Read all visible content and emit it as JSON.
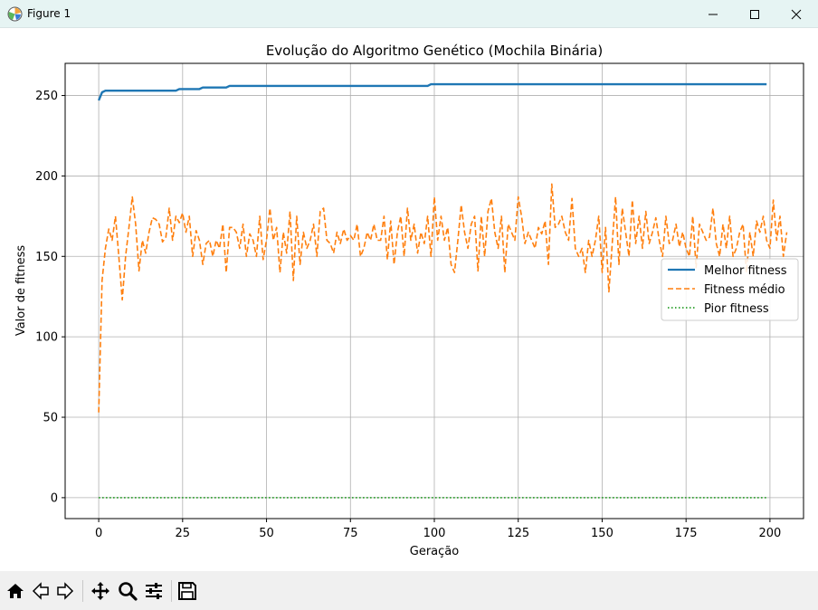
{
  "window": {
    "title": "Figure 1"
  },
  "toolbar": {
    "buttons": [
      {
        "name": "home-icon"
      },
      {
        "name": "back-arrow-icon"
      },
      {
        "name": "forward-arrow-icon"
      },
      {
        "name": "pan-icon"
      },
      {
        "name": "zoom-icon"
      },
      {
        "name": "configure-subplots-icon"
      },
      {
        "name": "save-icon"
      }
    ]
  },
  "colors": {
    "best": "#1f77b4",
    "mean": "#ff7f0e",
    "worst": "#2ca02c",
    "grid": "#b0b0b0"
  },
  "chart_data": {
    "type": "line",
    "title": "Evolução do Algoritmo Genético (Mochila Binária)",
    "xlabel": "Geração",
    "ylabel": "Valor de fitness",
    "xlim": [
      -10,
      210
    ],
    "ylim": [
      -13,
      270
    ],
    "xticks": [
      0,
      25,
      50,
      75,
      100,
      125,
      150,
      175,
      200
    ],
    "yticks": [
      0,
      50,
      100,
      150,
      200,
      250
    ],
    "grid": true,
    "legend_position": "center-right",
    "series": [
      {
        "name": "Melhor fitness",
        "style": "solid",
        "color": "#1f77b4",
        "steps": [
          [
            0,
            247
          ],
          [
            1,
            252
          ],
          [
            2,
            253
          ],
          [
            23,
            253
          ],
          [
            24,
            254
          ],
          [
            30,
            254
          ],
          [
            31,
            255
          ],
          [
            38,
            255
          ],
          [
            39,
            256
          ],
          [
            98,
            256
          ],
          [
            99,
            257
          ],
          [
            199,
            257
          ]
        ]
      },
      {
        "name": "Fitness médio",
        "style": "dashed",
        "color": "#ff7f0e",
        "values": [
          53,
          135,
          155,
          167,
          160,
          175,
          150,
          123,
          150,
          168,
          187,
          170,
          141,
          160,
          152,
          165,
          174,
          173,
          170,
          159,
          162,
          180,
          160,
          175,
          171,
          177,
          165,
          175,
          150,
          166,
          160,
          145,
          158,
          160,
          150,
          160,
          155,
          170,
          140,
          168,
          168,
          165,
          155,
          170,
          150,
          164,
          160,
          150,
          175,
          148,
          160,
          180,
          160,
          168,
          140,
          165,
          152,
          178,
          135,
          175,
          145,
          165,
          155,
          160,
          170,
          150,
          178,
          180,
          160,
          158,
          152,
          165,
          158,
          167,
          160,
          163,
          160,
          170,
          150,
          155,
          165,
          160,
          170,
          160,
          160,
          175,
          148,
          172,
          145,
          165,
          175,
          150,
          180,
          160,
          170,
          152,
          165,
          158,
          175,
          150,
          187,
          160,
          175,
          160,
          168,
          145,
          140,
          160,
          182,
          165,
          155,
          170,
          175,
          141,
          175,
          150,
          178,
          186,
          165,
          155,
          175,
          140,
          170,
          165,
          160,
          187,
          175,
          158,
          165,
          160,
          155,
          168,
          164,
          172,
          145,
          195,
          168,
          170,
          175,
          165,
          160,
          186,
          155,
          150,
          155,
          140,
          160,
          150,
          160,
          175,
          140,
          168,
          128,
          158,
          187,
          145,
          180,
          165,
          150,
          185,
          158,
          175,
          155,
          178,
          158,
          165,
          174,
          160,
          150,
          175,
          158,
          160,
          170,
          156,
          165,
          155,
          150,
          175,
          143,
          170,
          165,
          160,
          162,
          180,
          158,
          150,
          170,
          155,
          175,
          150,
          155,
          165,
          170,
          140,
          165,
          150,
          172,
          165,
          175,
          160,
          155,
          185,
          160,
          175,
          150,
          165
        ]
      },
      {
        "name": "Pior fitness",
        "style": "dotted",
        "color": "#2ca02c",
        "constant": 0,
        "x_range": [
          0,
          199
        ]
      }
    ]
  }
}
